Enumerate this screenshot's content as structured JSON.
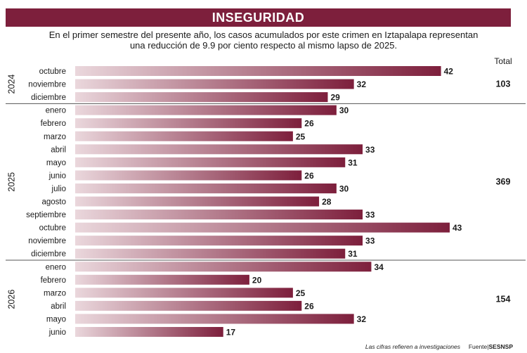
{
  "header": {
    "title": "INSEGURIDAD",
    "subtitle_line1": "En el primer semestre del presente año, los casos acumulados por este crimen en Iztapalapa representan",
    "subtitle_line2": "una reducción de 9.9 por ciento respecto al mismo lapso de 2025."
  },
  "footer": {
    "note": "Las cifras refieren a investigaciones",
    "source_label": "Fuente",
    "source": "SESNSP"
  },
  "colors": {
    "bar_dark": "#7d1f3c",
    "bar_light": "#ead7dc",
    "divider": "#555555",
    "title_bg": "#7d1f3c"
  },
  "chart_data": {
    "type": "bar",
    "orientation": "horizontal",
    "total_header": "Total",
    "groups": [
      {
        "year": "2024",
        "total": "103",
        "categories": [
          "octubre",
          "noviembre",
          "diciembre"
        ],
        "values": [
          42,
          32,
          29
        ]
      },
      {
        "year": "2025",
        "total": "369",
        "categories": [
          "enero",
          "febrero",
          "marzo",
          "abril",
          "mayo",
          "junio",
          "julio",
          "agosto",
          "septiembre",
          "octubre",
          "noviembre",
          "diciembre"
        ],
        "values": [
          30,
          26,
          25,
          33,
          31,
          26,
          30,
          28,
          33,
          43,
          33,
          31
        ]
      },
      {
        "year": "2026",
        "total": "154",
        "categories": [
          "enero",
          "febrero",
          "marzo",
          "abril",
          "mayo",
          "junio"
        ],
        "values": [
          34,
          20,
          25,
          26,
          32,
          17
        ]
      }
    ],
    "xlim": [
      0,
      43
    ]
  }
}
